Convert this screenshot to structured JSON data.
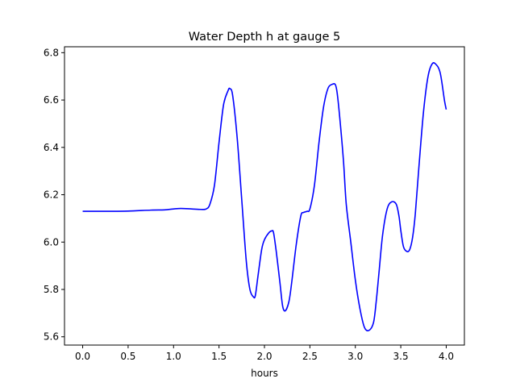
{
  "chart_data": {
    "type": "line",
    "title": "Water Depth h at gauge 5",
    "xlabel": "hours",
    "ylabel": "",
    "xlim": [
      -0.2,
      4.2
    ],
    "ylim": [
      5.565,
      6.825
    ],
    "xticks": [
      0.0,
      0.5,
      1.0,
      1.5,
      2.0,
      2.5,
      3.0,
      3.5,
      4.0
    ],
    "xtick_labels": [
      "0.0",
      "0.5",
      "1.0",
      "1.5",
      "2.0",
      "2.5",
      "3.0",
      "3.5",
      "4.0"
    ],
    "yticks": [
      5.6,
      5.8,
      6.0,
      6.2,
      6.4,
      6.6,
      6.8
    ],
    "ytick_labels": [
      "5.6",
      "5.8",
      "6.0",
      "6.2",
      "6.4",
      "6.6",
      "6.8"
    ],
    "grid": false,
    "series": [
      {
        "color": "#0000ff",
        "x": [
          0.0,
          0.25,
          0.5,
          0.75,
          0.9,
          1.0,
          1.08,
          1.2,
          1.3,
          1.36,
          1.4,
          1.45,
          1.5,
          1.55,
          1.6,
          1.62,
          1.65,
          1.7,
          1.75,
          1.8,
          1.84,
          1.88,
          1.9,
          1.93,
          1.97,
          2.0,
          2.05,
          2.08,
          2.1,
          2.13,
          2.17,
          2.2,
          2.23,
          2.27,
          2.3,
          2.35,
          2.4,
          2.43,
          2.47,
          2.5,
          2.55,
          2.6,
          2.65,
          2.7,
          2.75,
          2.78,
          2.8,
          2.83,
          2.87,
          2.9,
          2.95,
          3.0,
          3.05,
          3.1,
          3.15,
          3.2,
          3.23,
          3.26,
          3.3,
          3.35,
          3.4,
          3.45,
          3.48,
          3.5,
          3.53,
          3.57,
          3.6,
          3.63,
          3.66,
          3.7,
          3.75,
          3.8,
          3.85,
          3.9,
          3.93,
          3.95,
          3.98,
          4.0
        ],
        "y": [
          6.13,
          6.13,
          6.131,
          6.135,
          6.136,
          6.14,
          6.142,
          6.14,
          6.138,
          6.14,
          6.16,
          6.24,
          6.42,
          6.58,
          6.64,
          6.648,
          6.62,
          6.44,
          6.18,
          5.92,
          5.8,
          5.768,
          5.775,
          5.86,
          5.97,
          6.01,
          6.04,
          6.047,
          6.04,
          5.96,
          5.83,
          5.73,
          5.71,
          5.75,
          5.83,
          5.99,
          6.11,
          6.125,
          6.13,
          6.14,
          6.24,
          6.42,
          6.57,
          6.65,
          6.667,
          6.665,
          6.63,
          6.52,
          6.34,
          6.16,
          6.0,
          5.84,
          5.72,
          5.64,
          5.627,
          5.66,
          5.75,
          5.87,
          6.03,
          6.14,
          6.17,
          6.16,
          6.11,
          6.05,
          5.98,
          5.96,
          5.97,
          6.02,
          6.12,
          6.32,
          6.55,
          6.7,
          6.755,
          6.745,
          6.72,
          6.68,
          6.6,
          6.56
        ]
      }
    ]
  }
}
